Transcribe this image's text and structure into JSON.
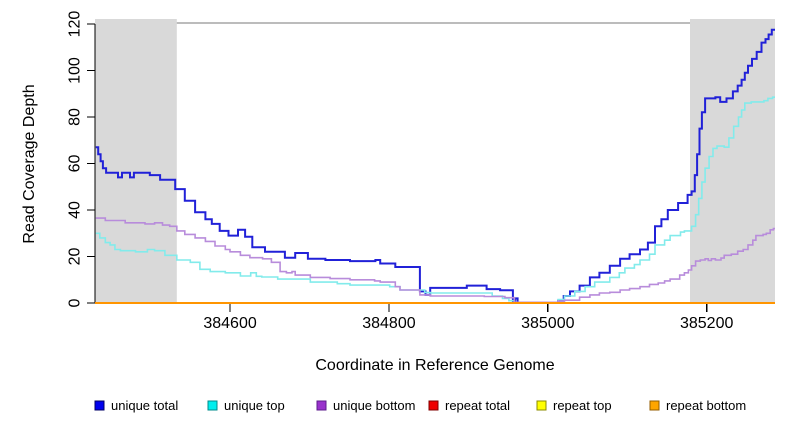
{
  "chart_data": {
    "type": "line",
    "step": true,
    "title": "",
    "xlabel": "Coordinate in Reference Genome",
    "ylabel": "Read Coverage Depth",
    "xlim": [
      384430,
      385286
    ],
    "ylim": [
      0,
      120
    ],
    "x_ticks": [
      384600,
      384800,
      385000,
      385200
    ],
    "y_ticks": [
      0,
      20,
      40,
      60,
      80,
      100,
      120
    ],
    "grid": false,
    "legend_position": "bottom",
    "background_color": "#ffffff",
    "shaded_region_color": "#d9d9d9",
    "shaded_regions": [
      {
        "x0": 384430,
        "x1": 384533
      },
      {
        "x0": 385179,
        "x1": 385286
      }
    ],
    "series": [
      {
        "name": "unique total",
        "color": "#2121d8",
        "swatch_fill": "#0000ee",
        "swatch_border": "#000066",
        "width": 2,
        "points": [
          [
            384431,
            67
          ],
          [
            384434,
            64
          ],
          [
            384437,
            61
          ],
          [
            384440,
            58
          ],
          [
            384444,
            56
          ],
          [
            384459,
            54
          ],
          [
            384464,
            56
          ],
          [
            384474,
            54
          ],
          [
            384479,
            56
          ],
          [
            384499,
            55
          ],
          [
            384512,
            53
          ],
          [
            384531,
            49
          ],
          [
            384543,
            44
          ],
          [
            384556,
            39
          ],
          [
            384569,
            36
          ],
          [
            384577,
            34
          ],
          [
            384587,
            31
          ],
          [
            384598,
            29
          ],
          [
            384610,
            31.5
          ],
          [
            384619,
            28.5
          ],
          [
            384628,
            24
          ],
          [
            384644,
            22
          ],
          [
            384669,
            19.5
          ],
          [
            384682,
            21.5
          ],
          [
            384698,
            19
          ],
          [
            384720,
            18.5
          ],
          [
            384751,
            18
          ],
          [
            384783,
            18.5
          ],
          [
            384789,
            17
          ],
          [
            384808,
            15.5
          ],
          [
            384839,
            5
          ],
          [
            384846,
            3.5
          ],
          [
            384852,
            6.5
          ],
          [
            384898,
            7.5
          ],
          [
            384923,
            6
          ],
          [
            384940,
            5.5
          ],
          [
            384956,
            0.5
          ],
          [
            384959,
            2
          ],
          [
            384962,
            0
          ],
          [
            385013,
            1
          ],
          [
            385020,
            3
          ],
          [
            385028,
            5
          ],
          [
            385040,
            7.5
          ],
          [
            385053,
            11
          ],
          [
            385065,
            13
          ],
          [
            385078,
            16
          ],
          [
            385091,
            19
          ],
          [
            385103,
            21
          ],
          [
            385116,
            23
          ],
          [
            385126,
            26
          ],
          [
            385135,
            33
          ],
          [
            385143,
            36
          ],
          [
            385151,
            40
          ],
          [
            385164,
            43
          ],
          [
            385176,
            46.5
          ],
          [
            385181,
            48
          ],
          [
            385185,
            55
          ],
          [
            385188,
            64
          ],
          [
            385191,
            75
          ],
          [
            385194,
            82
          ],
          [
            385198,
            88
          ],
          [
            385211,
            88.5
          ],
          [
            385217,
            86.5
          ],
          [
            385225,
            88
          ],
          [
            385233,
            91
          ],
          [
            385239,
            93.5
          ],
          [
            385244,
            96
          ],
          [
            385248,
            99
          ],
          [
            385252,
            102
          ],
          [
            385257,
            105
          ],
          [
            385263,
            108
          ],
          [
            385269,
            112
          ],
          [
            385274,
            113.5
          ],
          [
            385278,
            115.5
          ],
          [
            385282,
            117.5
          ]
        ]
      },
      {
        "name": "unique top",
        "color": "#82ebeb",
        "swatch_fill": "#00eeee",
        "swatch_border": "#008b8b",
        "width": 1.6,
        "points": [
          [
            384431,
            30
          ],
          [
            384436,
            28
          ],
          [
            384443,
            26
          ],
          [
            384449,
            25
          ],
          [
            384455,
            23
          ],
          [
            384462,
            22.5
          ],
          [
            384481,
            22
          ],
          [
            384496,
            23
          ],
          [
            384505,
            22.5
          ],
          [
            384518,
            20.5
          ],
          [
            384533,
            18.5
          ],
          [
            384550,
            17.5
          ],
          [
            384562,
            14.5
          ],
          [
            384575,
            13.5
          ],
          [
            384594,
            13
          ],
          [
            384613,
            11.6
          ],
          [
            384626,
            13
          ],
          [
            384633,
            11.5
          ],
          [
            384640,
            11.2
          ],
          [
            384660,
            10.3
          ],
          [
            384701,
            9
          ],
          [
            384735,
            8.3
          ],
          [
            384751,
            7.7
          ],
          [
            384801,
            7
          ],
          [
            384814,
            5.6
          ],
          [
            384845,
            4.5
          ],
          [
            384852,
            4.3
          ],
          [
            384930,
            3
          ],
          [
            384943,
            2
          ],
          [
            384951,
            1
          ],
          [
            384958,
            0.3
          ],
          [
            385013,
            1.5
          ],
          [
            385021,
            3
          ],
          [
            385034,
            5
          ],
          [
            385047,
            7
          ],
          [
            385059,
            9
          ],
          [
            385078,
            11
          ],
          [
            385090,
            13
          ],
          [
            385097,
            15
          ],
          [
            385109,
            16.5
          ],
          [
            385116,
            18.5
          ],
          [
            385128,
            21
          ],
          [
            385135,
            25
          ],
          [
            385147,
            27
          ],
          [
            385154,
            29
          ],
          [
            385167,
            30.5
          ],
          [
            385172,
            31
          ],
          [
            385181,
            33
          ],
          [
            385186,
            38
          ],
          [
            385190,
            45
          ],
          [
            385194,
            52
          ],
          [
            385198,
            58
          ],
          [
            385203,
            63
          ],
          [
            385208,
            66.5
          ],
          [
            385213,
            67.5
          ],
          [
            385222,
            67
          ],
          [
            385228,
            71
          ],
          [
            385234,
            76
          ],
          [
            385240,
            80
          ],
          [
            385244,
            83
          ],
          [
            385248,
            86
          ],
          [
            385256,
            86.5
          ],
          [
            385272,
            87
          ],
          [
            385277,
            88
          ],
          [
            385283,
            88.5
          ]
        ]
      },
      {
        "name": "unique bottom",
        "color": "#b88cdb",
        "swatch_fill": "#9932cc",
        "swatch_border": "#5e1c8e",
        "width": 1.6,
        "points": [
          [
            384431,
            36.5
          ],
          [
            384443,
            35.5
          ],
          [
            384468,
            34.5
          ],
          [
            384493,
            34
          ],
          [
            384505,
            34.5
          ],
          [
            384515,
            33.5
          ],
          [
            384524,
            33
          ],
          [
            384533,
            31
          ],
          [
            384543,
            29.5
          ],
          [
            384556,
            28
          ],
          [
            384569,
            26.5
          ],
          [
            384581,
            24.5
          ],
          [
            384594,
            23
          ],
          [
            384600,
            22
          ],
          [
            384613,
            20.5
          ],
          [
            384625,
            19.5
          ],
          [
            384641,
            19
          ],
          [
            384652,
            17.5
          ],
          [
            384663,
            13.5
          ],
          [
            384671,
            13
          ],
          [
            384678,
            13.5
          ],
          [
            384682,
            12
          ],
          [
            384701,
            11
          ],
          [
            384726,
            10.5
          ],
          [
            384751,
            10
          ],
          [
            384782,
            9.5
          ],
          [
            384789,
            9
          ],
          [
            384808,
            7
          ],
          [
            384814,
            5.6
          ],
          [
            384839,
            3.5
          ],
          [
            384852,
            3
          ],
          [
            384920,
            2.8
          ],
          [
            384946,
            2.3
          ],
          [
            384958,
            0.3
          ],
          [
            385013,
            0.8
          ],
          [
            385021,
            1.2
          ],
          [
            385040,
            2.5
          ],
          [
            385053,
            3.5
          ],
          [
            385065,
            4.3
          ],
          [
            385078,
            4.6
          ],
          [
            385091,
            5.6
          ],
          [
            385103,
            6.2
          ],
          [
            385116,
            7
          ],
          [
            385128,
            8
          ],
          [
            385139,
            8.6
          ],
          [
            385147,
            9.5
          ],
          [
            385154,
            10.3
          ],
          [
            385166,
            12
          ],
          [
            385172,
            13
          ],
          [
            385177,
            14.2
          ],
          [
            385181,
            16
          ],
          [
            385186,
            18
          ],
          [
            385192,
            18.5
          ],
          [
            385198,
            19
          ],
          [
            385202,
            18.3
          ],
          [
            385206,
            19
          ],
          [
            385211,
            18.5
          ],
          [
            385218,
            19.3
          ],
          [
            385222,
            20.5
          ],
          [
            385231,
            21
          ],
          [
            385239,
            22.3
          ],
          [
            385246,
            23
          ],
          [
            385252,
            25
          ],
          [
            385258,
            27
          ],
          [
            385262,
            29
          ],
          [
            385271,
            29.5
          ],
          [
            385275,
            30
          ],
          [
            385280,
            31.5
          ],
          [
            385284,
            32
          ]
        ]
      },
      {
        "name": "repeat total",
        "color": "#e00000",
        "swatch_fill": "#ee0000",
        "swatch_border": "#7f0000",
        "width": 1.6,
        "points": [
          [
            384430,
            0
          ],
          [
            385286,
            0
          ]
        ]
      },
      {
        "name": "repeat top",
        "color": "#ffff00",
        "swatch_fill": "#ffff00",
        "swatch_border": "#8b8b00",
        "width": 1.6,
        "points": [
          [
            384430,
            0
          ],
          [
            385286,
            0
          ]
        ]
      },
      {
        "name": "repeat bottom",
        "color": "#ff9500",
        "swatch_fill": "#ffa500",
        "swatch_border": "#945e00",
        "width": 2,
        "points": [
          [
            384430,
            0
          ],
          [
            385286,
            0
          ]
        ]
      }
    ]
  }
}
